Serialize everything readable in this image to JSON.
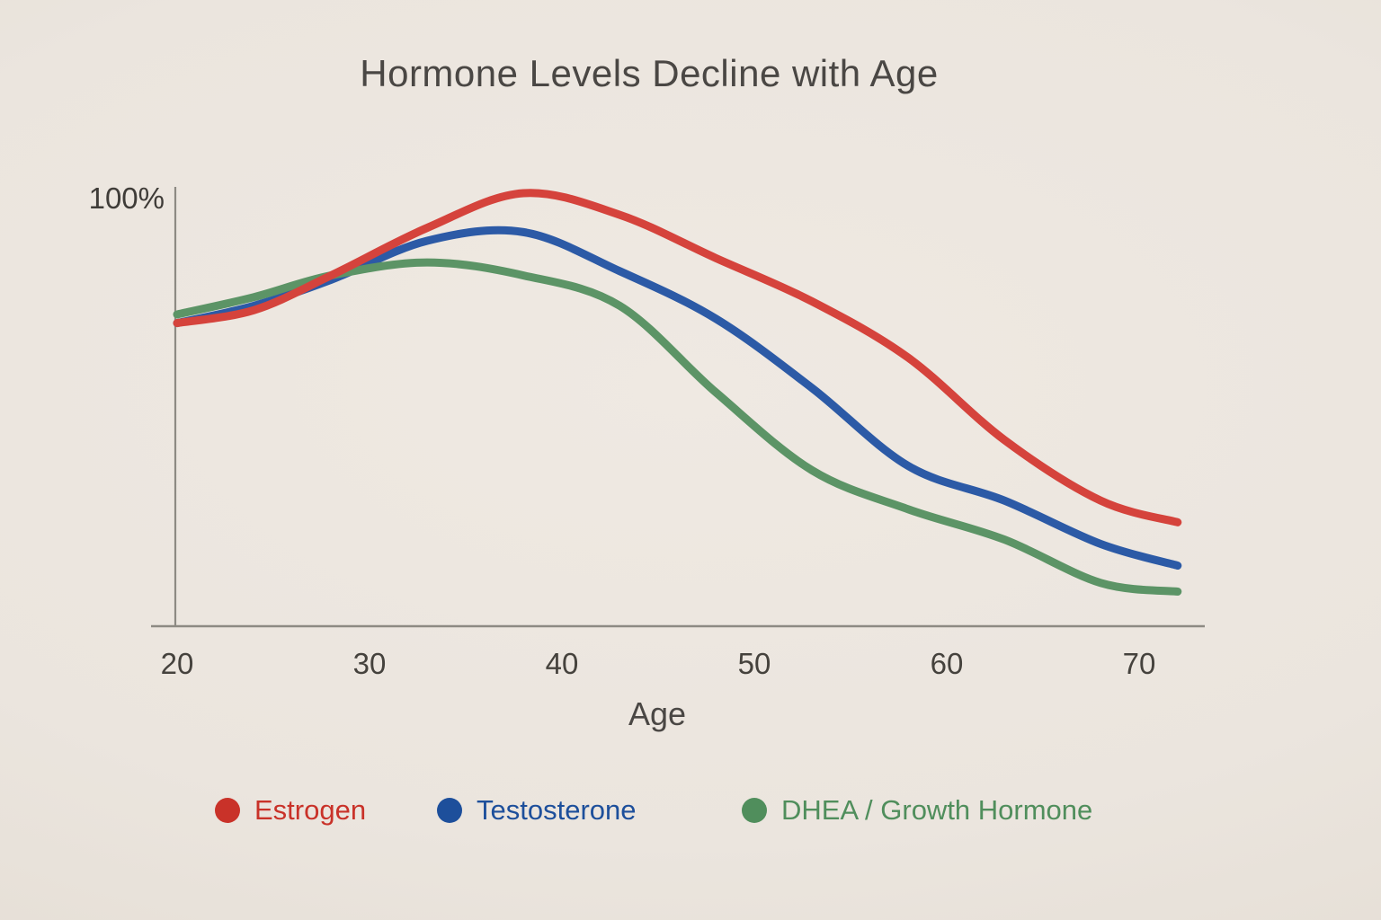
{
  "chart": {
    "title": "Hormone Levels Decline with Age",
    "y_axis": {
      "top_label": "100%"
    },
    "x_axis": {
      "label": "Age"
    }
  },
  "chart_data": {
    "type": "line",
    "title": "Hormone Levels Decline with Age",
    "xlabel": "Age",
    "ylabel": "",
    "xlim": [
      20,
      73
    ],
    "ylim": [
      0,
      100
    ],
    "x_ticks": [
      20,
      30,
      40,
      50,
      60,
      70
    ],
    "y_tick_labels": [
      "100%"
    ],
    "grid": false,
    "legend_position": "bottom",
    "x": [
      20,
      24,
      28,
      33,
      38,
      43,
      48,
      53,
      58,
      63,
      68,
      72
    ],
    "series": [
      {
        "name": "Estrogen",
        "color": "#d5433c",
        "legend_color": "#c93229",
        "peak_age": 38,
        "values": [
          70,
          73,
          81,
          92,
          100,
          95,
          85,
          75,
          62,
          43,
          29,
          24
        ]
      },
      {
        "name": "Testosterone",
        "color": "#2c5aa6",
        "legend_color": "#1d4f9b",
        "peak_age": 37,
        "values": [
          70,
          74,
          80,
          89,
          91,
          82,
          71,
          55,
          37,
          29,
          19,
          14
        ]
      },
      {
        "name": "DHEA / Growth Hormone",
        "color": "#5c9466",
        "legend_color": "#508e5c",
        "peak_age": 33,
        "values": [
          72,
          76,
          81,
          84,
          81,
          74,
          54,
          36,
          27,
          20,
          10,
          8
        ]
      }
    ],
    "axis_color": "#8d8a83",
    "background_color": "#ebe5de"
  }
}
